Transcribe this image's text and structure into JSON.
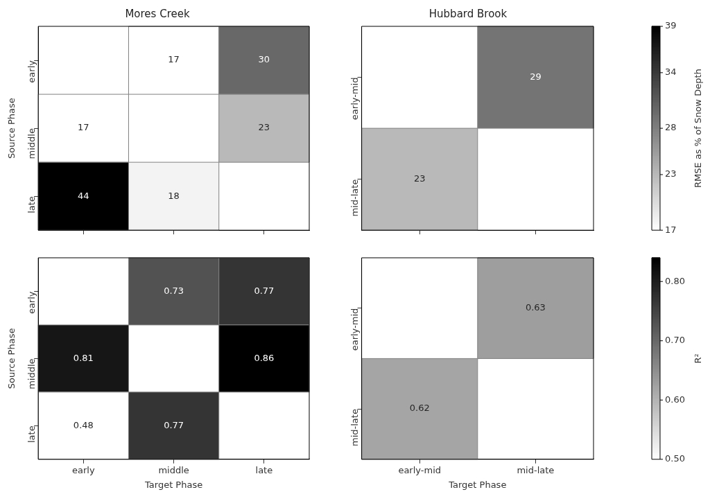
{
  "chart_data": [
    {
      "type": "heatmap",
      "title": "Mores Creek",
      "ylabel": "Source Phase",
      "categories": [
        null,
        null,
        null
      ],
      "y_categories": [
        "early",
        "middle",
        "late"
      ],
      "tick_labels": "y",
      "data_labels": true,
      "cells": [
        [
          null,
          17,
          30
        ],
        [
          17,
          null,
          23
        ],
        [
          44,
          18,
          null
        ]
      ]
    },
    {
      "type": "heatmap",
      "title": "Hubbard Brook",
      "categories": [
        null,
        null
      ],
      "y_categories": [
        "early-mid",
        "mid-late"
      ],
      "tick_labels": "y",
      "data_labels": true,
      "clim": [
        17,
        39
      ],
      "clabel": "RMSE as % of Snow Depth",
      "cticks": [
        17,
        23,
        28,
        34,
        39
      ],
      "cells": [
        [
          null,
          29
        ],
        [
          23,
          null
        ]
      ]
    },
    {
      "type": "heatmap",
      "xlabel": "Target Phase",
      "ylabel": "Source Phase",
      "categories": [
        "early",
        "middle",
        "late"
      ],
      "y_categories": [
        "early",
        "middle",
        "late"
      ],
      "data_labels": true,
      "cells": [
        [
          null,
          0.73,
          0.77
        ],
        [
          0.81,
          null,
          0.86
        ],
        [
          0.48,
          0.77,
          null
        ]
      ]
    },
    {
      "type": "heatmap",
      "xlabel": "Target Phase",
      "categories": [
        "early-mid",
        "mid-late"
      ],
      "y_categories": [
        "early-mid",
        "mid-late"
      ],
      "data_labels": true,
      "clim": [
        0.5,
        0.84
      ],
      "clabel": "R²",
      "cticks": [
        {
          "value": 0.5,
          "label": "0.50"
        },
        {
          "value": 0.6,
          "label": "0.60"
        },
        {
          "value": 0.7,
          "label": "0.70"
        },
        {
          "value": 0.8,
          "label": "0.80"
        }
      ],
      "cells": [
        [
          null,
          0.63
        ],
        [
          0.62,
          null
        ]
      ]
    }
  ]
}
